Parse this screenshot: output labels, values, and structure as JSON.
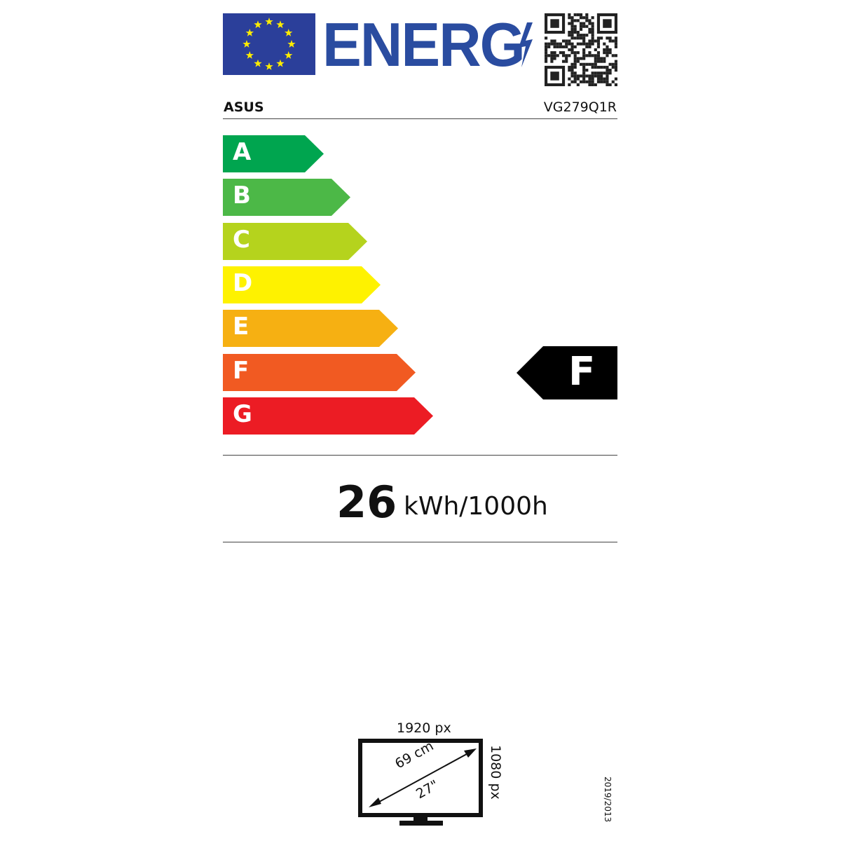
{
  "header": {
    "logo_text": "ENERG",
    "supplier": "ASUS",
    "model": "VG279Q1R"
  },
  "scale": {
    "classes": [
      {
        "label": "A",
        "color": "#00a54f"
      },
      {
        "label": "B",
        "color": "#4cb847"
      },
      {
        "label": "C",
        "color": "#b5d31d"
      },
      {
        "label": "D",
        "color": "#fef200"
      },
      {
        "label": "E",
        "color": "#f6b012"
      },
      {
        "label": "F",
        "color": "#f15a22"
      },
      {
        "label": "G",
        "color": "#ec1c24"
      }
    ],
    "rated_class": "F"
  },
  "consumption": {
    "value": "26",
    "unit": "kWh/1000h"
  },
  "display": {
    "width_px": "1920 px",
    "height_px": "1080 px",
    "diagonal_cm": "69 cm",
    "diagonal_in": "27\""
  },
  "regulation": "2019/2013",
  "colors": {
    "eu_blue": "#2b3f9a",
    "star_yellow": "#ffed00",
    "energ_blue": "#2a4ca0"
  }
}
